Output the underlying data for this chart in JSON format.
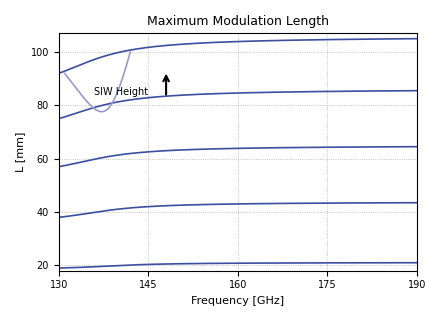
{
  "title": "Maximum Modulation Length",
  "xlabel": "Frequency [GHz]",
  "ylabel": "L [mm]",
  "xlim": [
    130,
    190
  ],
  "ylim": [
    18,
    107
  ],
  "xticks": [
    130,
    145,
    160,
    175,
    190
  ],
  "yticks": [
    20,
    40,
    60,
    80,
    100
  ],
  "line_color": "#3a4fa0",
  "loop_color": "#9999cc",
  "annotation_color": "black",
  "background_color": "#ffffff",
  "grid_color": "#aaaaaa",
  "figsize": [
    4.41,
    3.21
  ],
  "dpi": 100
}
